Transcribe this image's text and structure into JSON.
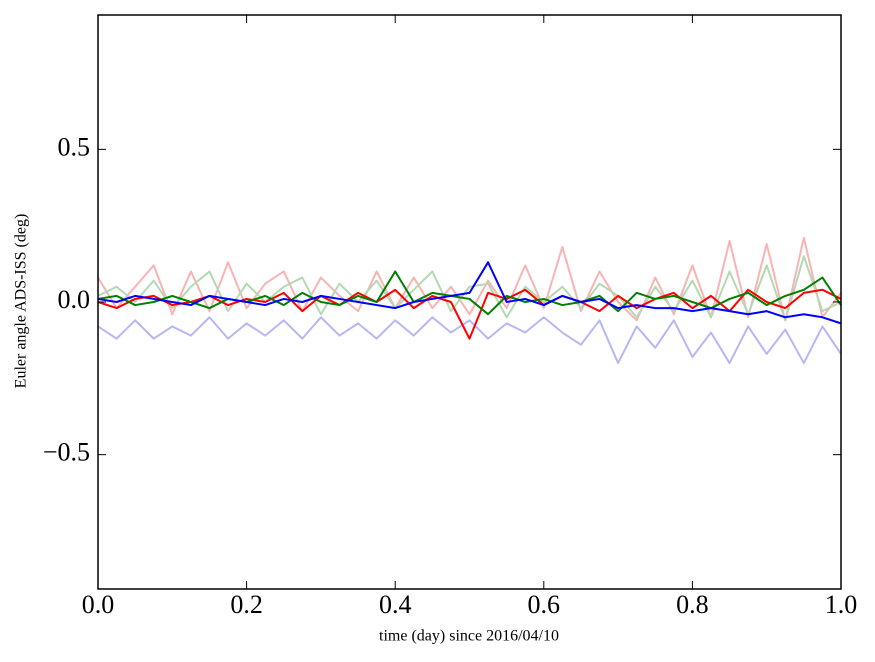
{
  "chart_data": {
    "type": "line",
    "xlabel": "time (day) since 2016/04/10",
    "ylabel": "Euler angle ADS-ISS (deg)",
    "x": [
      0,
      0.025,
      0.05,
      0.075,
      0.1,
      0.125,
      0.15,
      0.175,
      0.2,
      0.225,
      0.25,
      0.275,
      0.3,
      0.325,
      0.35,
      0.375,
      0.4,
      0.425,
      0.45,
      0.475,
      0.5,
      0.525,
      0.55,
      0.575,
      0.6,
      0.625,
      0.65,
      0.675,
      0.7,
      0.725,
      0.75,
      0.775,
      0.8,
      0.825,
      0.85,
      0.875,
      0.9,
      0.925,
      0.95,
      0.975,
      1
    ],
    "series": [
      {
        "color": "#f9b3b3",
        "values": [
          0.08,
          -0.02,
          0.05,
          0.12,
          -0.04,
          0.1,
          -0.03,
          0.13,
          -0.02,
          0.06,
          0.1,
          -0.03,
          0.08,
          0.02,
          -0.03,
          0.1,
          -0.02,
          0.08,
          -0.02,
          0.05,
          -0.04,
          0.07,
          -0.02,
          0.12,
          -0.02,
          0.18,
          -0.03,
          0.1,
          0.0,
          -0.06,
          0.08,
          -0.04,
          0.12,
          -0.05,
          0.2,
          -0.05,
          0.19,
          -0.06,
          0.21,
          -0.05,
          0.03
        ]
      },
      {
        "color": "#b3d9b3",
        "values": [
          0.02,
          0.05,
          0.0,
          0.07,
          -0.02,
          0.05,
          0.1,
          -0.03,
          0.06,
          0.0,
          0.05,
          0.08,
          -0.04,
          0.06,
          0.0,
          0.07,
          -0.02,
          0.04,
          0.1,
          -0.03,
          0.05,
          0.06,
          -0.05,
          0.05,
          0.0,
          0.05,
          -0.02,
          0.06,
          0.02,
          -0.05,
          0.05,
          -0.03,
          0.07,
          -0.05,
          0.1,
          -0.04,
          0.12,
          -0.06,
          0.15,
          -0.03,
          0.0
        ]
      },
      {
        "color": "#b7b7f5",
        "values": [
          -0.08,
          -0.12,
          -0.06,
          -0.12,
          -0.08,
          -0.11,
          -0.05,
          -0.12,
          -0.07,
          -0.11,
          -0.06,
          -0.12,
          -0.05,
          -0.11,
          -0.07,
          -0.12,
          -0.06,
          -0.11,
          -0.05,
          -0.1,
          -0.06,
          -0.12,
          -0.07,
          -0.1,
          -0.05,
          -0.1,
          -0.14,
          -0.06,
          -0.2,
          -0.08,
          -0.15,
          -0.06,
          -0.18,
          -0.1,
          -0.2,
          -0.08,
          -0.17,
          -0.09,
          -0.2,
          -0.08,
          -0.17
        ]
      },
      {
        "color": "#ff0000",
        "values": [
          0.0,
          -0.02,
          0.01,
          0.02,
          -0.01,
          0.0,
          0.02,
          -0.01,
          0.01,
          0.0,
          0.03,
          -0.03,
          0.02,
          -0.01,
          0.03,
          0.0,
          0.04,
          -0.02,
          0.02,
          0.0,
          -0.12,
          0.03,
          0.01,
          0.04,
          -0.01,
          0.02,
          0.0,
          -0.03,
          0.02,
          -0.02,
          0.01,
          0.03,
          -0.02,
          0.02,
          -0.03,
          0.04,
          0.0,
          -0.02,
          0.03,
          0.04,
          0.01
        ]
      },
      {
        "color": "#008000",
        "values": [
          0.01,
          0.02,
          -0.01,
          0.0,
          0.02,
          0.0,
          -0.02,
          0.01,
          0.0,
          0.02,
          -0.01,
          0.03,
          0.0,
          -0.01,
          0.02,
          0.0,
          0.1,
          0.0,
          0.03,
          0.02,
          0.01,
          -0.04,
          0.02,
          0.0,
          0.01,
          -0.01,
          0.0,
          0.02,
          -0.03,
          0.03,
          0.01,
          0.02,
          0.0,
          -0.02,
          0.01,
          0.03,
          -0.01,
          0.02,
          0.04,
          0.08,
          -0.01
        ]
      },
      {
        "color": "#0000ff",
        "values": [
          0.01,
          0.0,
          0.02,
          0.01,
          0.0,
          -0.01,
          0.02,
          0.01,
          0.0,
          -0.01,
          0.01,
          0.0,
          0.02,
          0.01,
          0.0,
          -0.01,
          -0.02,
          0.0,
          0.01,
          0.02,
          0.03,
          0.13,
          0.0,
          0.01,
          -0.01,
          0.02,
          0.0,
          0.01,
          -0.02,
          -0.01,
          -0.02,
          -0.02,
          -0.03,
          -0.02,
          -0.03,
          -0.04,
          -0.03,
          -0.05,
          -0.04,
          -0.05,
          -0.07
        ]
      }
    ],
    "xlim": [
      0,
      1
    ],
    "ylim": [
      -0.94,
      0.94
    ],
    "xticks": [
      {
        "value": 0,
        "label": "0.0"
      },
      0.2,
      0.4,
      0.6,
      0.8,
      {
        "value": 1,
        "label": "1.0"
      }
    ],
    "yticks": [
      {
        "value": -0.5,
        "label": "−0.5"
      },
      {
        "value": 0,
        "label": "0.0"
      },
      0.5
    ],
    "grid": false
  }
}
